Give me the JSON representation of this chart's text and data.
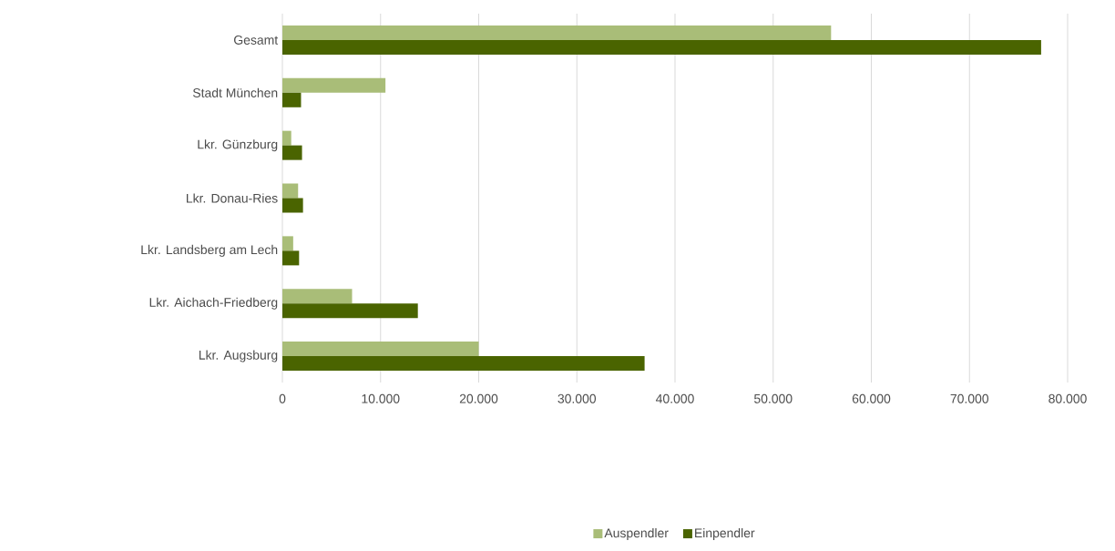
{
  "chart_data": {
    "type": "bar",
    "orientation": "horizontal",
    "categories": [
      "Gesamt",
      "Stadt München",
      "Lkr. Günzburg",
      "Lkr. Donau-Ries",
      "Lkr. Landsberg am Lech",
      "Lkr. Aichach-Friedberg",
      "Lkr. Augsburg"
    ],
    "series": [
      {
        "name": "Auspendler",
        "color": "#a9bd78",
        "values": [
          55900,
          10500,
          900,
          1600,
          1100,
          7100,
          20000
        ]
      },
      {
        "name": "Einpendler",
        "color": "#4a6400",
        "values": [
          77300,
          1900,
          2000,
          2100,
          1700,
          13800,
          36900
        ]
      }
    ],
    "xlim": [
      0,
      80000
    ],
    "xticks": [
      0,
      {
        "value": 10000,
        "label": "10.000"
      },
      {
        "value": 20000,
        "label": "20.000"
      },
      {
        "value": 30000,
        "label": "30.000"
      },
      {
        "value": 40000,
        "label": "40.000"
      },
      {
        "value": 50000,
        "label": "50.000"
      },
      {
        "value": 60000,
        "label": "60.000"
      },
      {
        "value": 70000,
        "label": "70.000"
      },
      {
        "value": 80000,
        "label": "80.000"
      }
    ],
    "grid": "x",
    "legend": "bottom"
  }
}
